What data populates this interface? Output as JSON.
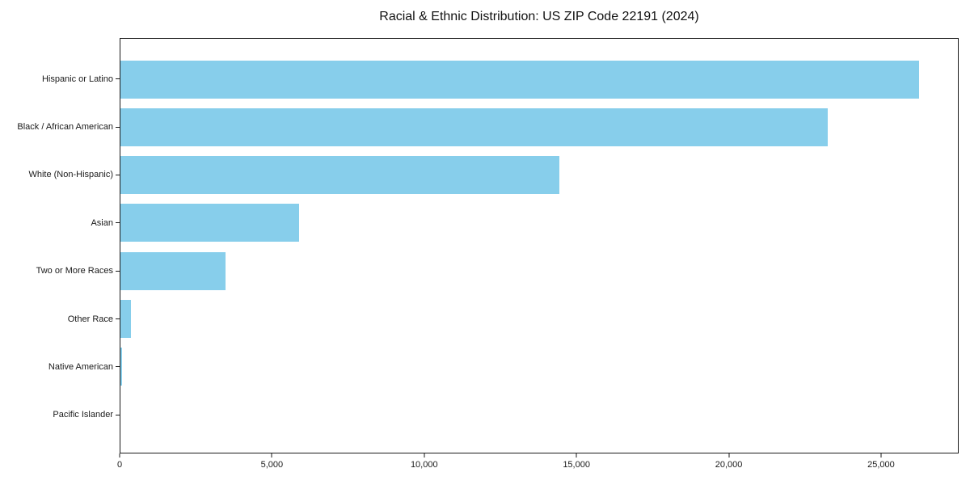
{
  "chart_data": {
    "type": "bar",
    "orientation": "horizontal",
    "title": "Racial & Ethnic Distribution: US ZIP Code 22191 (2024)",
    "categories": [
      "Hispanic or Latino",
      "Black / African American",
      "White (Non-Hispanic)",
      "Asian",
      "Two or More Races",
      "Other Race",
      "Native American",
      "Pacific Islander"
    ],
    "values": [
      26280,
      23270,
      14440,
      5880,
      3460,
      350,
      55,
      0
    ],
    "xlabel": "",
    "ylabel": "",
    "xlim": [
      0,
      27550
    ],
    "xticks": [
      0,
      5000,
      10000,
      15000,
      20000,
      25000
    ],
    "xtick_labels": [
      "0",
      "5,000",
      "10,000",
      "15,000",
      "20,000",
      "25,000"
    ],
    "bar_color": "#87CEEB",
    "axis_color": "#1a1a1a",
    "background_color": "#ffffff",
    "grid": false,
    "legend": false
  }
}
